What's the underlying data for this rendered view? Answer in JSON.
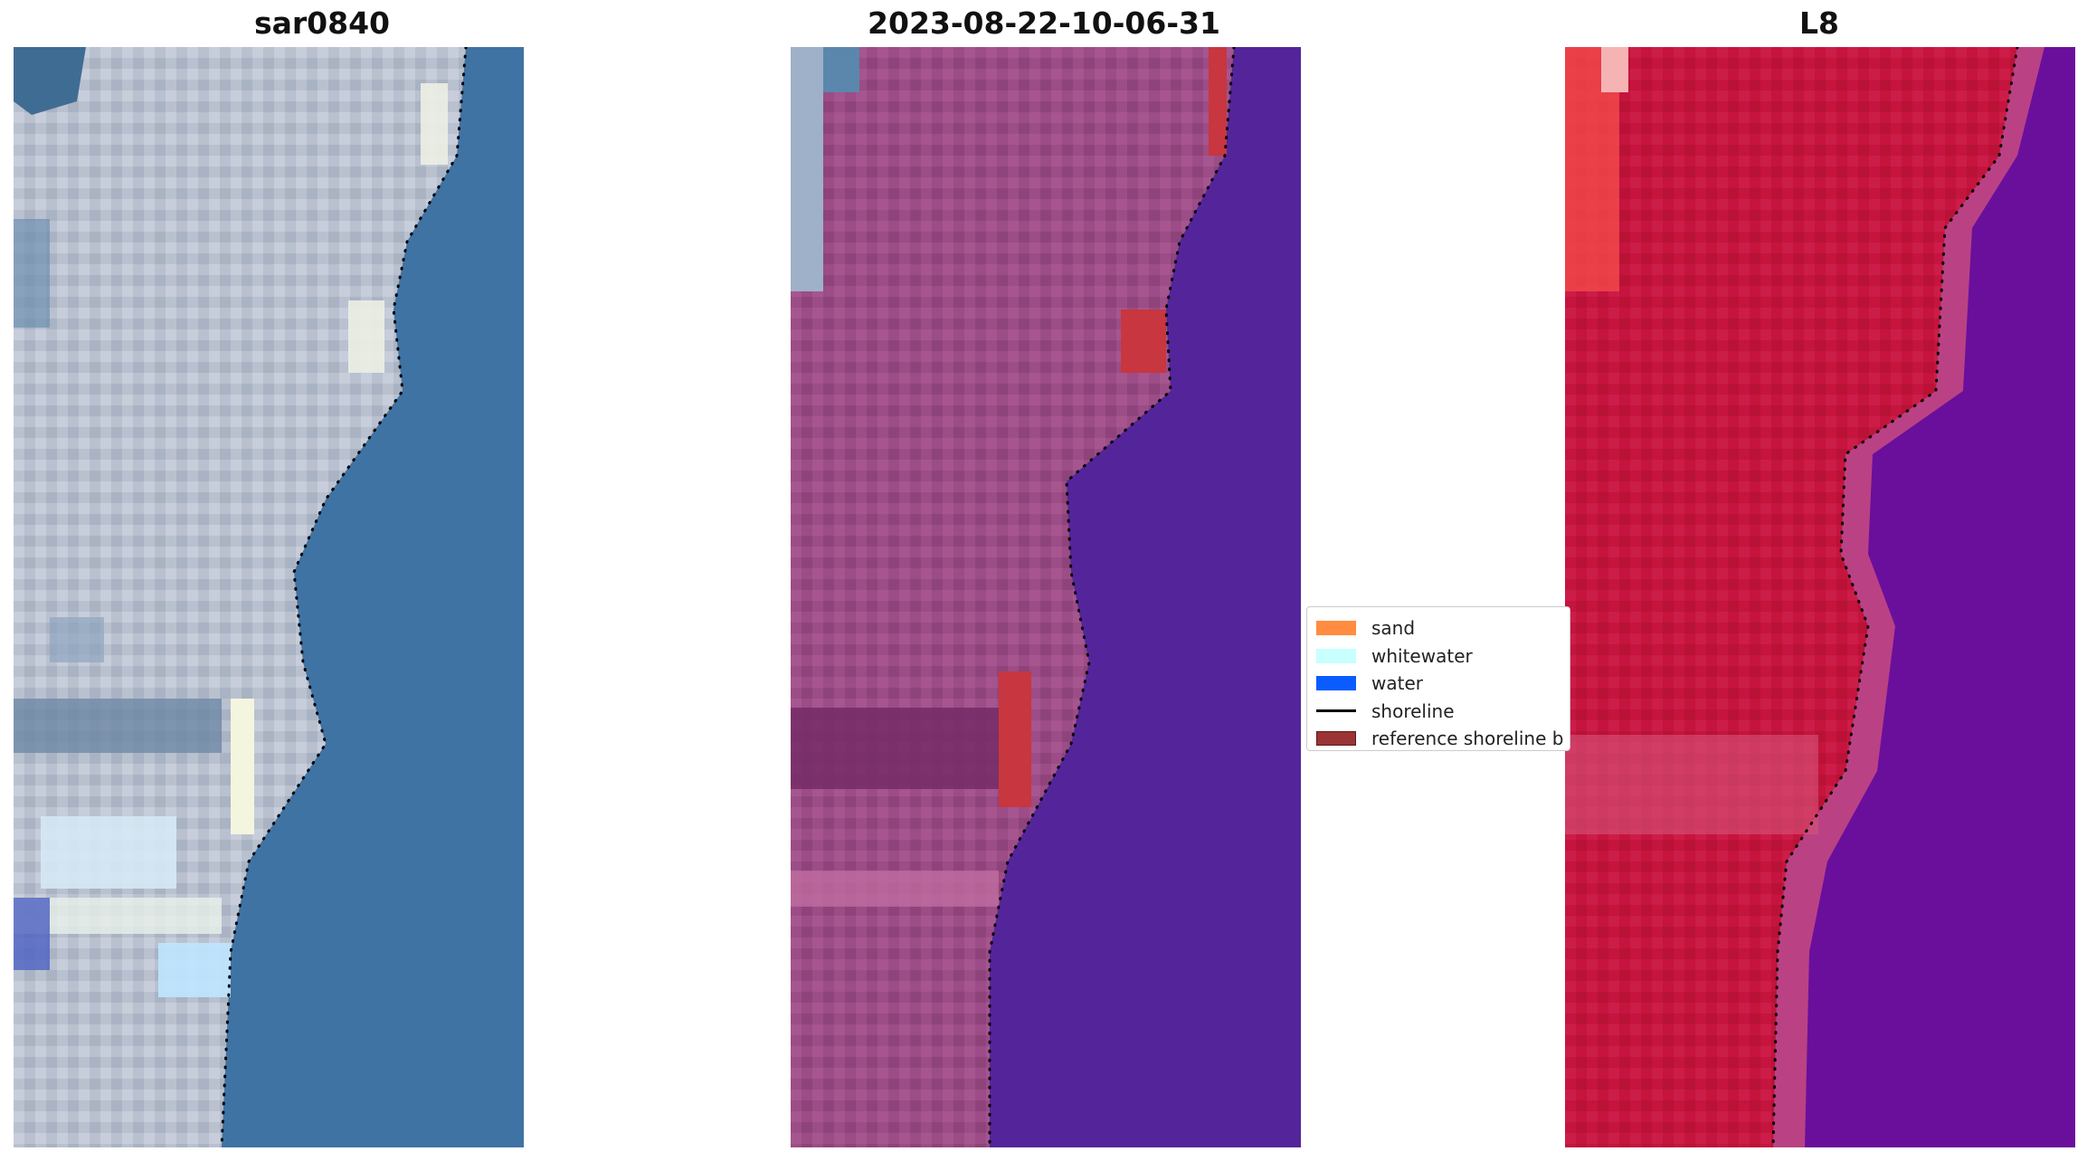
{
  "panels": [
    {
      "title": "sar0840",
      "image": "true-color-satellite-tile"
    },
    {
      "title": "2023-08-22-10-06-31",
      "image": "classified-false-color-tile"
    },
    {
      "title": "L8",
      "image": "false-color-tile"
    }
  ],
  "legend": {
    "items": [
      {
        "label": "sand",
        "color": "#ff8c40",
        "kind": "patch"
      },
      {
        "label": "whitewater",
        "color": "#c8ffff",
        "kind": "patch"
      },
      {
        "label": "water",
        "color": "#0a5cff",
        "kind": "patch"
      },
      {
        "label": "shoreline",
        "color": "#000000",
        "kind": "line"
      },
      {
        "label": "reference shoreline b",
        "color": "#9b3434",
        "kind": "patch"
      }
    ]
  }
}
